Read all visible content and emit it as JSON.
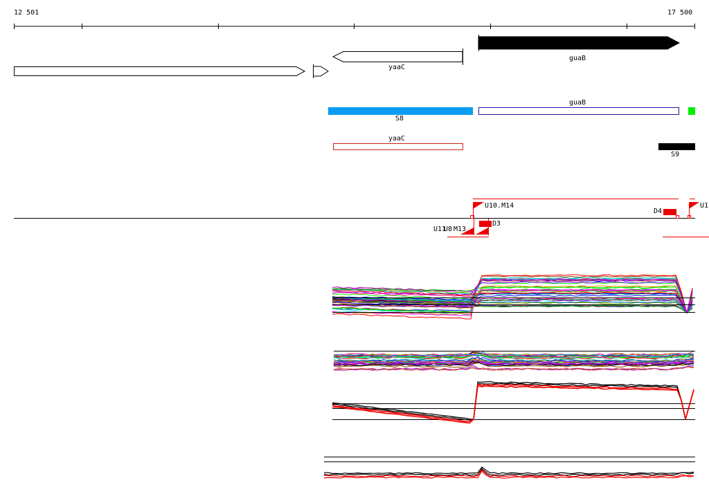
{
  "axis": {
    "start_label": "12 501",
    "end_label": "17 500",
    "start": 12501,
    "end": 17500
  },
  "genes": {
    "yaaC": "yaaC",
    "guaB": "guaB"
  },
  "annotations": {
    "guaB": "guaB",
    "S8": "S8",
    "yaaC": "yaaC",
    "S9": "S9"
  },
  "features": {
    "U10_M14": "U10.M14",
    "D4": "D4",
    "U1": "U1",
    "U11": "U11",
    "U8": "U8",
    "M13": "M13",
    "D3": "D3"
  },
  "colors": {
    "S8": "#0a9cf2",
    "S9": "#000000",
    "green_block": "#00ee00",
    "guaB_outline": "#1a1aa0",
    "yaaC_outline": "#cc2020",
    "feature_red": "#ee0000",
    "gene_fill": "#000000"
  }
}
